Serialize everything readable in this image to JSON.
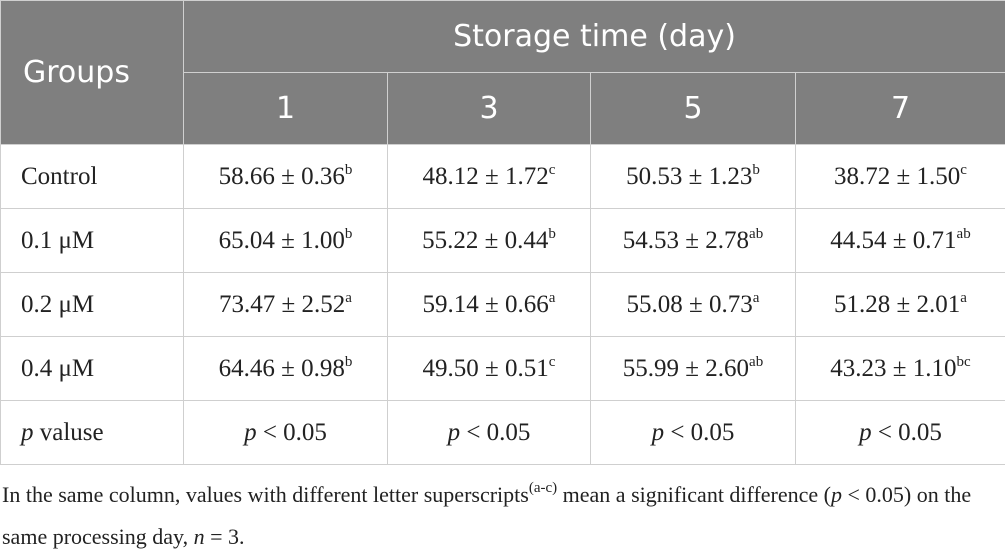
{
  "header": {
    "groups": "Groups",
    "storage_time": "Storage time (day)",
    "days": [
      1,
      3,
      5,
      7
    ]
  },
  "rows": [
    {
      "label": "Control",
      "cells": [
        {
          "value": "58.66 ± 0.36",
          "sup": "b"
        },
        {
          "value": "48.12 ± 1.72",
          "sup": "c"
        },
        {
          "value": "50.53 ± 1.23",
          "sup": "b"
        },
        {
          "value": "38.72 ± 1.50",
          "sup": "c"
        }
      ]
    },
    {
      "label": "0.1 μM",
      "cells": [
        {
          "value": "65.04 ± 1.00",
          "sup": "b"
        },
        {
          "value": "55.22 ± 0.44",
          "sup": "b"
        },
        {
          "value": "54.53 ± 2.78",
          "sup": "ab"
        },
        {
          "value": "44.54 ± 0.71",
          "sup": "ab"
        }
      ]
    },
    {
      "label": "0.2 μM",
      "cells": [
        {
          "value": "73.47 ± 2.52",
          "sup": "a"
        },
        {
          "value": "59.14 ± 0.66",
          "sup": "a"
        },
        {
          "value": "55.08 ± 0.73",
          "sup": "a"
        },
        {
          "value": "51.28 ± 2.01",
          "sup": "a"
        }
      ]
    },
    {
      "label": "0.4 μM",
      "cells": [
        {
          "value": "64.46 ± 0.98",
          "sup": "b"
        },
        {
          "value": "49.50 ± 0.51",
          "sup": "c"
        },
        {
          "value": "55.99 ± 2.60",
          "sup": "ab"
        },
        {
          "value": "43.23 ± 1.10",
          "sup": "bc"
        }
      ]
    }
  ],
  "p_row": {
    "label": {
      "italic": "p",
      "text": " valuse"
    },
    "cells": [
      {
        "italic": "p",
        "text": " < 0.05"
      },
      {
        "italic": "p",
        "text": " < 0.05"
      },
      {
        "italic": "p",
        "text": " < 0.05"
      },
      {
        "italic": "p",
        "text": " < 0.05"
      }
    ]
  },
  "footnote": [
    {
      "text": "In the same column, values with different letter superscripts"
    },
    {
      "text": "(a-c)",
      "style": "sup"
    },
    {
      "text": " mean a significant difference ("
    },
    {
      "text": "p",
      "style": "italic"
    },
    {
      "text": " < 0.05) on the same processing day, "
    },
    {
      "text": "n",
      "style": "italic"
    },
    {
      "text": " = 3."
    }
  ]
}
